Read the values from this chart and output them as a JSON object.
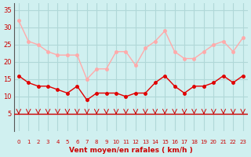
{
  "x": [
    0,
    1,
    2,
    3,
    4,
    5,
    6,
    7,
    8,
    9,
    10,
    11,
    12,
    13,
    14,
    15,
    16,
    17,
    18,
    19,
    20,
    21,
    22,
    23
  ],
  "wind_avg": [
    16,
    14,
    13,
    13,
    12,
    11,
    13,
    9,
    11,
    11,
    11,
    10,
    11,
    11,
    14,
    16,
    13,
    11,
    13,
    13,
    14,
    16,
    14,
    16
  ],
  "wind_gust": [
    32,
    26,
    25,
    23,
    22,
    22,
    22,
    15,
    18,
    18,
    23,
    23,
    19,
    24,
    26,
    29,
    23,
    21,
    21,
    23,
    25,
    26,
    23,
    27
  ],
  "avg_color": "#e00000",
  "gust_color": "#ffaaaa",
  "bg_color": "#d0f0f0",
  "grid_color": "#b0d8d8",
  "axis_color": "#cc0000",
  "xlabel": "Vent moyen/en rafales ( km/h )",
  "ylim": [
    0,
    37
  ],
  "yticks": [
    5,
    10,
    15,
    20,
    25,
    30,
    35
  ],
  "xticks": [
    0,
    1,
    2,
    3,
    4,
    5,
    6,
    7,
    8,
    9,
    10,
    11,
    12,
    13,
    14,
    15,
    16,
    17,
    18,
    19,
    20,
    21,
    22,
    23
  ],
  "arrow_color": "#cc0000"
}
